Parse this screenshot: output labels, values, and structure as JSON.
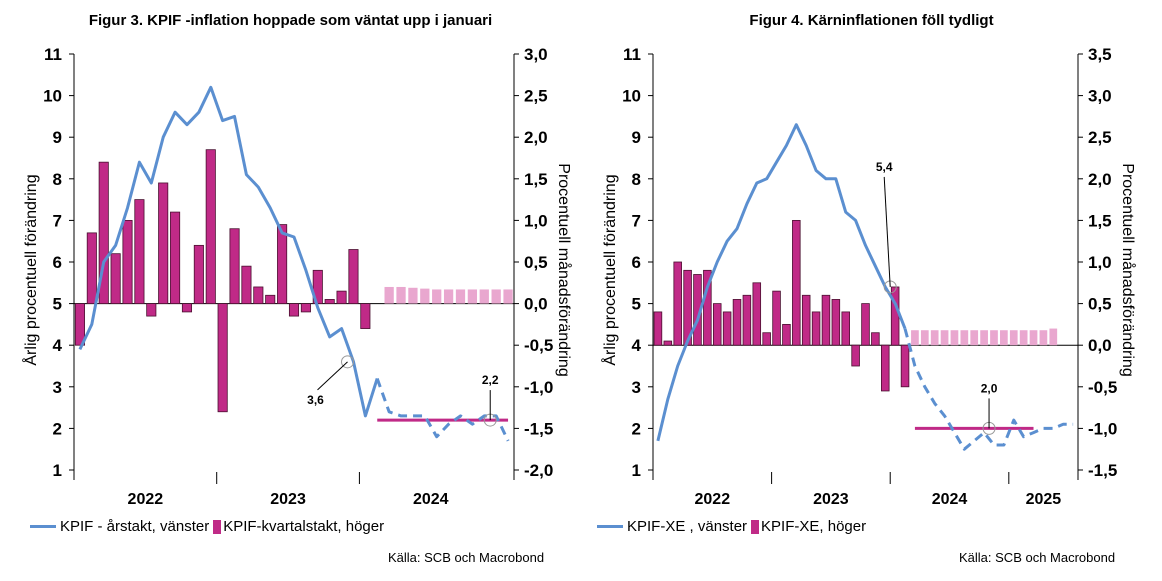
{
  "colors": {
    "line": "#5b8fd0",
    "bar": "#c02a87",
    "bar_forecast": "#e9a7cf",
    "flat_line": "#c02a87",
    "text": "#000000"
  },
  "chart_data": [
    {
      "type": "line+bar",
      "title": "Figur 3. KPIF -inflation hoppade som väntat upp i januari",
      "ylabel_left": "Årlig procentuell förändring",
      "ylabel_right": "Procentuell månadsförändring",
      "ylim_left": [
        1,
        11
      ],
      "ylim_right": [
        -2.0,
        3.0
      ],
      "yticks_left": [
        "1",
        "2",
        "3",
        "4",
        "5",
        "6",
        "7",
        "8",
        "9",
        "10",
        "11"
      ],
      "yticks_right": [
        "-2,0",
        "-1,5",
        "-1,0",
        "-0,5",
        "0,0",
        "0,5",
        "1,0",
        "1,5",
        "2,0",
        "2,5",
        "3,0"
      ],
      "x_categories": [
        "2022",
        "2023",
        "2024"
      ],
      "legend": {
        "line_label": "KPIF - årstakt, vänster",
        "bar_label": "KPIF-kvartalstakt, höger"
      },
      "source": "Källa: SCB och Macrobond",
      "annotations": [
        {
          "text": "3,6",
          "x": 22.5,
          "y": 3.6
        },
        {
          "text": "2,2",
          "x": 34.5,
          "y": 2.2
        }
      ],
      "line_actual": [
        {
          "x": 0,
          "y": 3.9
        },
        {
          "x": 1,
          "y": 4.5
        },
        {
          "x": 2,
          "y": 6.0
        },
        {
          "x": 3,
          "y": 6.4
        },
        {
          "x": 4,
          "y": 7.3
        },
        {
          "x": 5,
          "y": 8.4
        },
        {
          "x": 6,
          "y": 7.9
        },
        {
          "x": 7,
          "y": 9.0
        },
        {
          "x": 8,
          "y": 9.6
        },
        {
          "x": 9,
          "y": 9.3
        },
        {
          "x": 10,
          "y": 9.6
        },
        {
          "x": 11,
          "y": 10.2
        },
        {
          "x": 12,
          "y": 9.4
        },
        {
          "x": 13,
          "y": 9.5
        },
        {
          "x": 14,
          "y": 8.1
        },
        {
          "x": 15,
          "y": 7.8
        },
        {
          "x": 16,
          "y": 7.3
        },
        {
          "x": 17,
          "y": 6.7
        },
        {
          "x": 18,
          "y": 6.6
        },
        {
          "x": 19,
          "y": 5.8
        },
        {
          "x": 20,
          "y": 4.9
        },
        {
          "x": 21,
          "y": 4.2
        },
        {
          "x": 22,
          "y": 4.4
        },
        {
          "x": 23,
          "y": 3.6
        },
        {
          "x": 24,
          "y": 2.3
        },
        {
          "x": 25,
          "y": 3.2
        }
      ],
      "line_forecast": [
        {
          "x": 25,
          "y": 3.2
        },
        {
          "x": 26,
          "y": 2.4
        },
        {
          "x": 27,
          "y": 2.3
        },
        {
          "x": 28,
          "y": 2.3
        },
        {
          "x": 29,
          "y": 2.3
        },
        {
          "x": 30,
          "y": 1.8
        },
        {
          "x": 31,
          "y": 2.1
        },
        {
          "x": 32,
          "y": 2.3
        },
        {
          "x": 33,
          "y": 2.1
        },
        {
          "x": 34,
          "y": 2.3
        },
        {
          "x": 35,
          "y": 2.3
        },
        {
          "x": 36,
          "y": 1.7
        }
      ],
      "bars": [
        {
          "x": 0,
          "v": -0.5
        },
        {
          "x": 1,
          "v": 0.85
        },
        {
          "x": 2,
          "v": 1.7
        },
        {
          "x": 3,
          "v": 0.6
        },
        {
          "x": 4,
          "v": 1.0
        },
        {
          "x": 5,
          "v": 1.25
        },
        {
          "x": 6,
          "v": -0.15
        },
        {
          "x": 7,
          "v": 1.45
        },
        {
          "x": 8,
          "v": 1.1
        },
        {
          "x": 9,
          "v": -0.1
        },
        {
          "x": 10,
          "v": 0.7
        },
        {
          "x": 11,
          "v": 1.85
        },
        {
          "x": 12,
          "v": -1.3
        },
        {
          "x": 13,
          "v": 0.9
        },
        {
          "x": 14,
          "v": 0.45
        },
        {
          "x": 15,
          "v": 0.2
        },
        {
          "x": 16,
          "v": 0.1
        },
        {
          "x": 17,
          "v": 0.95
        },
        {
          "x": 18,
          "v": -0.15
        },
        {
          "x": 19,
          "v": -0.1
        },
        {
          "x": 20,
          "v": 0.4
        },
        {
          "x": 21,
          "v": 0.05
        },
        {
          "x": 22,
          "v": 0.15
        },
        {
          "x": 23,
          "v": 0.65
        },
        {
          "x": 24,
          "v": -0.3
        }
      ],
      "bars_forecast": [
        {
          "x": 26,
          "v": 0.2
        },
        {
          "x": 27,
          "v": 0.2
        },
        {
          "x": 28,
          "v": 0.19
        },
        {
          "x": 29,
          "v": 0.18
        },
        {
          "x": 30,
          "v": 0.17
        },
        {
          "x": 31,
          "v": 0.17
        },
        {
          "x": 32,
          "v": 0.17
        },
        {
          "x": 33,
          "v": 0.17
        },
        {
          "x": 34,
          "v": 0.17
        },
        {
          "x": 35,
          "v": 0.17
        },
        {
          "x": 36,
          "v": 0.17
        }
      ],
      "flat_line": {
        "x_start": 25,
        "x_end": 36,
        "y": 2.2
      }
    },
    {
      "type": "line+bar",
      "title": "Figur 4. Kärninflationen föll tydligt",
      "ylabel_left": "Årlig procentuell förändring",
      "ylabel_right": "Procentuell månadsförändring",
      "ylim_left": [
        1,
        11
      ],
      "ylim_right": [
        -1.5,
        3.5
      ],
      "yticks_left": [
        "1",
        "2",
        "3",
        "4",
        "5",
        "6",
        "7",
        "8",
        "9",
        "10",
        "11"
      ],
      "yticks_right": [
        "-1,5",
        "-1,0",
        "-0,5",
        "0,0",
        "0,5",
        "1,0",
        "1,5",
        "2,0",
        "2,5",
        "3,0",
        "3,5"
      ],
      "x_categories": [
        "2022",
        "2023",
        "2024",
        "2025"
      ],
      "legend": {
        "line_label": "KPIF-XE , vänster",
        "bar_label": "KPIF-XE, höger"
      },
      "source": "Källa: SCB och Macrobond",
      "annotations": [
        {
          "text": "5,4",
          "x": 23.5,
          "y": 5.4
        },
        {
          "text": "2,0",
          "x": 33.5,
          "y": 2.0
        }
      ],
      "line_actual": [
        {
          "x": 0,
          "y": 1.7
        },
        {
          "x": 1,
          "y": 2.7
        },
        {
          "x": 2,
          "y": 3.5
        },
        {
          "x": 3,
          "y": 4.1
        },
        {
          "x": 4,
          "y": 4.6
        },
        {
          "x": 5,
          "y": 5.4
        },
        {
          "x": 6,
          "y": 6.0
        },
        {
          "x": 7,
          "y": 6.5
        },
        {
          "x": 8,
          "y": 6.8
        },
        {
          "x": 9,
          "y": 7.4
        },
        {
          "x": 10,
          "y": 7.9
        },
        {
          "x": 11,
          "y": 8.0
        },
        {
          "x": 12,
          "y": 8.4
        },
        {
          "x": 13,
          "y": 8.8
        },
        {
          "x": 14,
          "y": 9.3
        },
        {
          "x": 15,
          "y": 8.8
        },
        {
          "x": 16,
          "y": 8.2
        },
        {
          "x": 17,
          "y": 8.0
        },
        {
          "x": 18,
          "y": 8.0
        },
        {
          "x": 19,
          "y": 7.2
        },
        {
          "x": 20,
          "y": 7.0
        },
        {
          "x": 21,
          "y": 6.4
        },
        {
          "x": 22,
          "y": 5.9
        },
        {
          "x": 23,
          "y": 5.4
        },
        {
          "x": 24,
          "y": 5.0
        },
        {
          "x": 25,
          "y": 4.4
        }
      ],
      "line_forecast": [
        {
          "x": 25,
          "y": 4.4
        },
        {
          "x": 26,
          "y": 3.5
        },
        {
          "x": 27,
          "y": 3.0
        },
        {
          "x": 28,
          "y": 2.6
        },
        {
          "x": 29,
          "y": 2.3
        },
        {
          "x": 30,
          "y": 1.9
        },
        {
          "x": 31,
          "y": 1.5
        },
        {
          "x": 32,
          "y": 1.7
        },
        {
          "x": 33,
          "y": 1.9
        },
        {
          "x": 34,
          "y": 1.6
        },
        {
          "x": 35,
          "y": 1.6
        },
        {
          "x": 36,
          "y": 2.2
        },
        {
          "x": 37,
          "y": 1.8
        },
        {
          "x": 38,
          "y": 1.9
        },
        {
          "x": 39,
          "y": 2.0
        },
        {
          "x": 40,
          "y": 2.0
        },
        {
          "x": 41,
          "y": 2.1
        },
        {
          "x": 42,
          "y": 2.1
        }
      ],
      "bars": [
        {
          "x": 0,
          "v": 0.4
        },
        {
          "x": 1,
          "v": 0.05
        },
        {
          "x": 2,
          "v": 1.0
        },
        {
          "x": 3,
          "v": 0.9
        },
        {
          "x": 4,
          "v": 0.85
        },
        {
          "x": 5,
          "v": 0.9
        },
        {
          "x": 6,
          "v": 0.5
        },
        {
          "x": 7,
          "v": 0.4
        },
        {
          "x": 8,
          "v": 0.55
        },
        {
          "x": 9,
          "v": 0.6
        },
        {
          "x": 10,
          "v": 0.75
        },
        {
          "x": 11,
          "v": 0.15
        },
        {
          "x": 12,
          "v": 0.65
        },
        {
          "x": 13,
          "v": 0.25
        },
        {
          "x": 14,
          "v": 1.5
        },
        {
          "x": 15,
          "v": 0.6
        },
        {
          "x": 16,
          "v": 0.4
        },
        {
          "x": 17,
          "v": 0.6
        },
        {
          "x": 18,
          "v": 0.55
        },
        {
          "x": 19,
          "v": 0.4
        },
        {
          "x": 20,
          "v": -0.25
        },
        {
          "x": 21,
          "v": 0.5
        },
        {
          "x": 22,
          "v": 0.15
        },
        {
          "x": 23,
          "v": -0.55
        },
        {
          "x": 24,
          "v": 0.7
        },
        {
          "x": 25,
          "v": -0.5
        }
      ],
      "bars_forecast": [
        {
          "x": 26,
          "v": 0.18
        },
        {
          "x": 27,
          "v": 0.18
        },
        {
          "x": 28,
          "v": 0.18
        },
        {
          "x": 29,
          "v": 0.18
        },
        {
          "x": 30,
          "v": 0.18
        },
        {
          "x": 31,
          "v": 0.18
        },
        {
          "x": 32,
          "v": 0.18
        },
        {
          "x": 33,
          "v": 0.18
        },
        {
          "x": 34,
          "v": 0.18
        },
        {
          "x": 35,
          "v": 0.18
        },
        {
          "x": 36,
          "v": 0.18
        },
        {
          "x": 37,
          "v": 0.18
        },
        {
          "x": 38,
          "v": 0.18
        },
        {
          "x": 39,
          "v": 0.18
        },
        {
          "x": 40,
          "v": 0.2
        }
      ],
      "flat_line": {
        "x_start": 26,
        "x_end": 38,
        "y": 2.0
      }
    }
  ]
}
